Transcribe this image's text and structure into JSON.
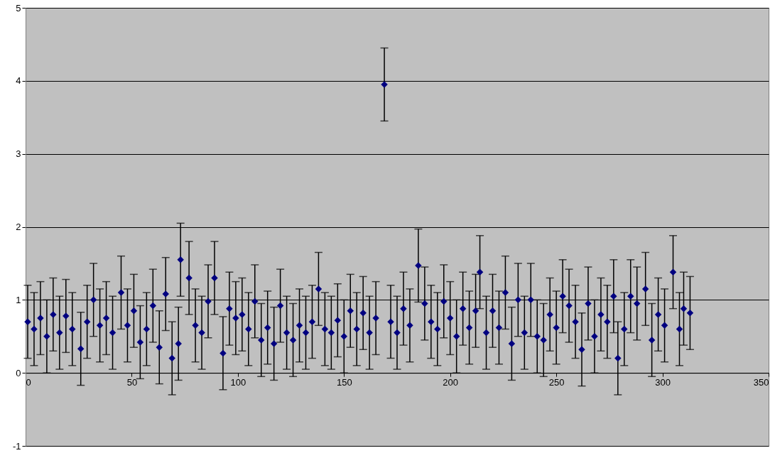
{
  "chart_data": {
    "type": "scatter",
    "marker": "diamond",
    "grid": "y",
    "x": [
      1,
      4,
      7,
      10,
      13,
      16,
      19,
      22,
      26,
      29,
      32,
      35,
      38,
      41,
      45,
      48,
      51,
      54,
      57,
      60,
      63,
      66,
      69,
      72,
      73,
      77,
      80,
      83,
      86,
      89,
      93,
      96,
      99,
      102,
      105,
      108,
      111,
      114,
      117,
      120,
      123,
      126,
      129,
      132,
      135,
      138,
      141,
      144,
      147,
      150,
      153,
      156,
      159,
      162,
      165,
      169,
      172,
      175,
      178,
      181,
      185,
      188,
      191,
      194,
      197,
      200,
      203,
      206,
      209,
      212,
      214,
      217,
      220,
      223,
      226,
      229,
      232,
      235,
      238,
      241,
      244,
      247,
      250,
      253,
      256,
      259,
      262,
      265,
      268,
      271,
      274,
      277,
      279,
      282,
      285,
      288,
      292,
      295,
      298,
      301,
      305,
      308,
      310,
      313
    ],
    "series": [
      {
        "color": "#000080",
        "values": [
          0.7,
          0.6,
          0.75,
          0.5,
          0.8,
          0.55,
          0.78,
          0.6,
          0.33,
          0.7,
          1.0,
          0.65,
          0.75,
          0.55,
          1.1,
          0.65,
          0.85,
          0.42,
          0.6,
          0.92,
          0.35,
          1.08,
          0.2,
          0.4,
          1.55,
          1.3,
          0.65,
          0.55,
          0.98,
          1.3,
          0.27,
          0.88,
          0.75,
          0.8,
          0.6,
          0.98,
          0.45,
          0.62,
          0.4,
          0.92,
          0.55,
          0.45,
          0.65,
          0.55,
          0.7,
          1.15,
          0.6,
          0.55,
          0.72,
          0.5,
          0.85,
          0.6,
          0.82,
          0.55,
          0.75,
          3.95,
          0.7,
          0.55,
          0.88,
          0.65,
          1.47,
          0.95,
          0.7,
          0.6,
          0.98,
          0.75,
          0.5,
          0.88,
          0.62,
          0.85,
          1.38,
          0.55,
          0.85,
          0.62,
          1.1,
          0.4,
          1.0,
          0.55,
          1.0,
          0.5,
          0.45,
          0.8,
          0.62,
          1.05,
          0.92,
          0.7,
          0.32,
          0.95,
          0.5,
          0.8,
          0.7,
          1.05,
          0.2,
          0.6,
          1.05,
          0.95,
          1.15,
          0.45,
          0.8,
          0.65,
          1.38,
          0.6,
          0.88,
          0.82
        ],
        "errors": [
          0.5,
          0.5,
          0.5,
          0.5,
          0.5,
          0.5,
          0.5,
          0.5,
          0.5,
          0.5,
          0.5,
          0.5,
          0.5,
          0.5,
          0.5,
          0.5,
          0.5,
          0.5,
          0.5,
          0.5,
          0.5,
          0.5,
          0.5,
          0.5,
          0.5,
          0.5,
          0.5,
          0.5,
          0.5,
          0.5,
          0.5,
          0.5,
          0.5,
          0.5,
          0.5,
          0.5,
          0.5,
          0.5,
          0.5,
          0.5,
          0.5,
          0.5,
          0.5,
          0.5,
          0.5,
          0.5,
          0.5,
          0.5,
          0.5,
          0.5,
          0.5,
          0.5,
          0.5,
          0.5,
          0.5,
          0.5,
          0.5,
          0.5,
          0.5,
          0.5,
          0.5,
          0.5,
          0.5,
          0.5,
          0.5,
          0.5,
          0.5,
          0.5,
          0.5,
          0.5,
          0.5,
          0.5,
          0.5,
          0.5,
          0.5,
          0.5,
          0.5,
          0.5,
          0.5,
          0.5,
          0.5,
          0.5,
          0.5,
          0.5,
          0.5,
          0.5,
          0.5,
          0.5,
          0.5,
          0.5,
          0.5,
          0.5,
          0.5,
          0.5,
          0.5,
          0.5,
          0.5,
          0.5,
          0.5,
          0.5,
          0.5,
          0.5,
          0.5,
          0.5
        ]
      }
    ],
    "xlim": [
      0,
      350
    ],
    "xticks": [
      0,
      50,
      100,
      150,
      200,
      250,
      300,
      350
    ],
    "ylim": [
      -1,
      5
    ],
    "yticks": [
      -1,
      0,
      1,
      2,
      3,
      4,
      5
    ]
  }
}
